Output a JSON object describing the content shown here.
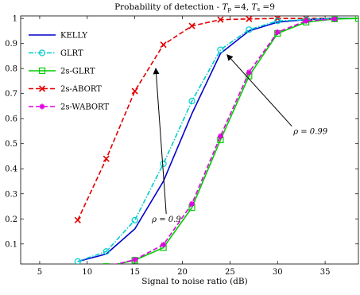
{
  "chart_data": {
    "type": "line",
    "title": "Probability of detection - Tp =4, Ts =9",
    "title_parts": {
      "prefix": "Probability of detection - ",
      "tp_sym": "T",
      "tp_sub": "p",
      "tp_val": " =4, ",
      "ts_sym": "T",
      "ts_sub": "s",
      "ts_val": " =9"
    },
    "xlabel": "Signal to noise ratio (dB)",
    "ylabel": "",
    "xlim": [
      3,
      38.5
    ],
    "ylim": [
      0.02,
      1.01
    ],
    "x_ticks": [
      5,
      10,
      15,
      20,
      25,
      30,
      35
    ],
    "y_ticks": [
      0.1,
      0.2,
      0.3,
      0.4,
      0.5,
      0.6,
      0.7,
      0.8,
      0.9,
      1
    ],
    "grid": false,
    "legend_position": "top-left",
    "series": [
      {
        "name": "KELLY",
        "color": "#0000cc",
        "dash": "solid",
        "marker": "none",
        "x": [
          9,
          12,
          15,
          18,
          21,
          24,
          27,
          30,
          33,
          36,
          38.5
        ],
        "y": [
          0.03,
          0.06,
          0.16,
          0.35,
          0.62,
          0.86,
          0.95,
          0.985,
          0.995,
          1.0,
          1.0
        ]
      },
      {
        "name": "GLRT",
        "color": "#00cccc",
        "dash": "dashdot",
        "marker": "circle",
        "x": [
          9,
          12,
          15,
          18,
          21,
          24,
          27,
          30,
          33,
          36
        ],
        "y": [
          0.03,
          0.07,
          0.195,
          0.42,
          0.67,
          0.875,
          0.955,
          0.99,
          0.995,
          1.0
        ]
      },
      {
        "name": "2s-GLRT",
        "color": "#00cc00",
        "dash": "solid",
        "marker": "square",
        "x": [
          9,
          12,
          15,
          18,
          21,
          24,
          27,
          30,
          33,
          36,
          38.5
        ],
        "y": [
          0.003,
          0.01,
          0.035,
          0.085,
          0.245,
          0.515,
          0.77,
          0.94,
          0.985,
          0.998,
          1.0
        ]
      },
      {
        "name": "2s-ABORT",
        "color": "#e00000",
        "dash": "dashed",
        "marker": "x",
        "x": [
          9,
          12,
          15,
          18,
          21,
          24,
          27,
          30,
          33,
          36
        ],
        "y": [
          0.195,
          0.44,
          0.71,
          0.895,
          0.97,
          0.995,
          0.998,
          1.0,
          1.0,
          1.0
        ]
      },
      {
        "name": "2s-WABORT",
        "color": "#e000e0",
        "dash": "dashed",
        "marker": "asterisk",
        "x": [
          9,
          12,
          15,
          18,
          21,
          24,
          27,
          30,
          33,
          36
        ],
        "y": [
          0.003,
          0.01,
          0.037,
          0.097,
          0.26,
          0.53,
          0.785,
          0.945,
          0.99,
          0.998
        ]
      }
    ],
    "annotations": [
      {
        "text": "ρ = 0.9",
        "from": [
          18.3,
          0.22
        ],
        "to": [
          17.2,
          0.8
        ]
      },
      {
        "text": "ρ = 0.99",
        "from": [
          31.5,
          0.57
        ],
        "to": [
          24.7,
          0.855
        ]
      }
    ]
  }
}
